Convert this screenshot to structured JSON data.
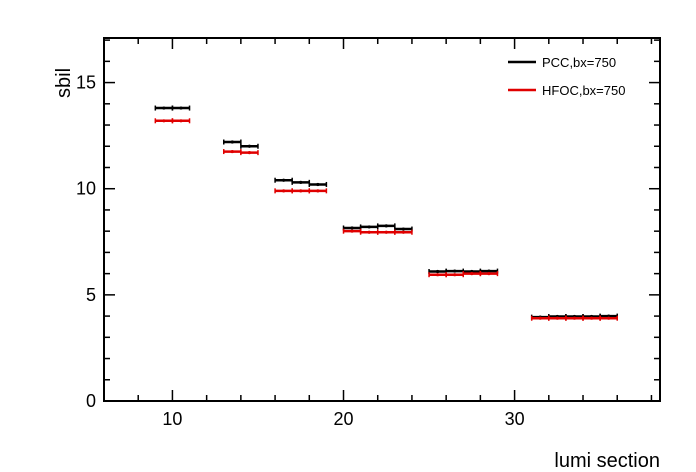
{
  "chart_data": {
    "type": "scatter",
    "xlabel": "lumi section",
    "ylabel": "sbil",
    "xlim": [
      6,
      38.5
    ],
    "ylim": [
      0,
      17.1
    ],
    "xticks": [
      10,
      20,
      30
    ],
    "yticks": [
      0,
      5,
      10,
      15
    ],
    "legend_position": "top-right",
    "series": [
      {
        "name": "PCC,bx=750",
        "color": "#000000",
        "points": [
          {
            "x": 9.5,
            "y": 13.8
          },
          {
            "x": 10.5,
            "y": 13.8
          },
          {
            "x": 13.5,
            "y": 12.2
          },
          {
            "x": 14.5,
            "y": 12.0
          },
          {
            "x": 16.5,
            "y": 10.4
          },
          {
            "x": 17.5,
            "y": 10.3
          },
          {
            "x": 18.5,
            "y": 10.2
          },
          {
            "x": 20.5,
            "y": 8.15
          },
          {
            "x": 21.5,
            "y": 8.2
          },
          {
            "x": 22.5,
            "y": 8.25
          },
          {
            "x": 23.5,
            "y": 8.1
          },
          {
            "x": 25.5,
            "y": 6.1
          },
          {
            "x": 26.5,
            "y": 6.12
          },
          {
            "x": 27.5,
            "y": 6.1
          },
          {
            "x": 28.5,
            "y": 6.12
          },
          {
            "x": 31.5,
            "y": 3.95
          },
          {
            "x": 32.5,
            "y": 3.98
          },
          {
            "x": 33.5,
            "y": 3.98
          },
          {
            "x": 34.5,
            "y": 3.98
          },
          {
            "x": 35.5,
            "y": 4.0
          }
        ]
      },
      {
        "name": "HFOC,bx=750",
        "color": "#e00000",
        "points": [
          {
            "x": 9.5,
            "y": 13.2
          },
          {
            "x": 10.5,
            "y": 13.2
          },
          {
            "x": 13.5,
            "y": 11.75
          },
          {
            "x": 14.5,
            "y": 11.7
          },
          {
            "x": 16.5,
            "y": 9.9
          },
          {
            "x": 17.5,
            "y": 9.9
          },
          {
            "x": 18.5,
            "y": 9.9
          },
          {
            "x": 20.5,
            "y": 8.0
          },
          {
            "x": 21.5,
            "y": 7.95
          },
          {
            "x": 22.5,
            "y": 7.95
          },
          {
            "x": 23.5,
            "y": 7.95
          },
          {
            "x": 25.5,
            "y": 5.95
          },
          {
            "x": 26.5,
            "y": 5.95
          },
          {
            "x": 27.5,
            "y": 6.0
          },
          {
            "x": 28.5,
            "y": 6.0
          },
          {
            "x": 31.5,
            "y": 3.9
          },
          {
            "x": 32.5,
            "y": 3.9
          },
          {
            "x": 33.5,
            "y": 3.9
          },
          {
            "x": 34.5,
            "y": 3.9
          },
          {
            "x": 35.5,
            "y": 3.9
          }
        ]
      }
    ]
  }
}
